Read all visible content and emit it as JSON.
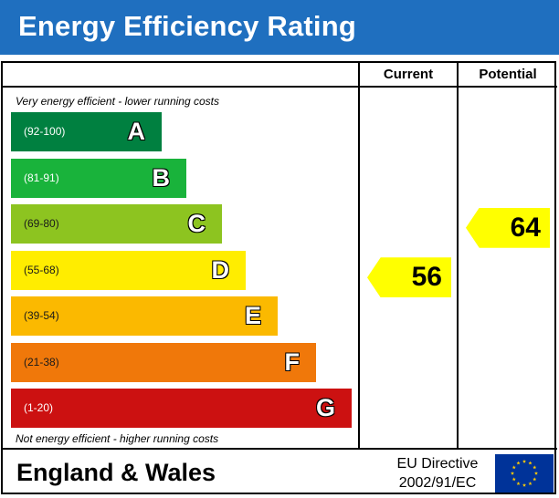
{
  "header": {
    "title": "Energy Efficiency Rating"
  },
  "columns": {
    "current": "Current",
    "potential": "Potential"
  },
  "notes": {
    "top": "Very energy efficient - lower running costs",
    "bottom": "Not energy efficient - higher running costs"
  },
  "chart_data": {
    "type": "bar",
    "categories": [
      "A",
      "B",
      "C",
      "D",
      "E",
      "F",
      "G"
    ],
    "bands": [
      {
        "letter": "A",
        "range": "(92-100)",
        "color": "#008040"
      },
      {
        "letter": "B",
        "range": "(81-91)",
        "color": "#19b33b"
      },
      {
        "letter": "C",
        "range": "(69-80)",
        "color": "#8dc420"
      },
      {
        "letter": "D",
        "range": "(55-68)",
        "color": "#ffed00"
      },
      {
        "letter": "E",
        "range": "(39-54)",
        "color": "#fbb900"
      },
      {
        "letter": "F",
        "range": "(21-38)",
        "color": "#f0780a"
      },
      {
        "letter": "G",
        "range": "(1-20)",
        "color": "#cc1111"
      }
    ],
    "current": 56,
    "potential": 64,
    "arrow_color": "#ffff00"
  },
  "footer": {
    "region": "England & Wales",
    "directive_line1": "EU Directive",
    "directive_line2": "2002/91/EC"
  },
  "colors": {
    "header_bg": "#1f6fbf",
    "flag_bg": "#003399",
    "flag_star": "#ffcc00"
  }
}
